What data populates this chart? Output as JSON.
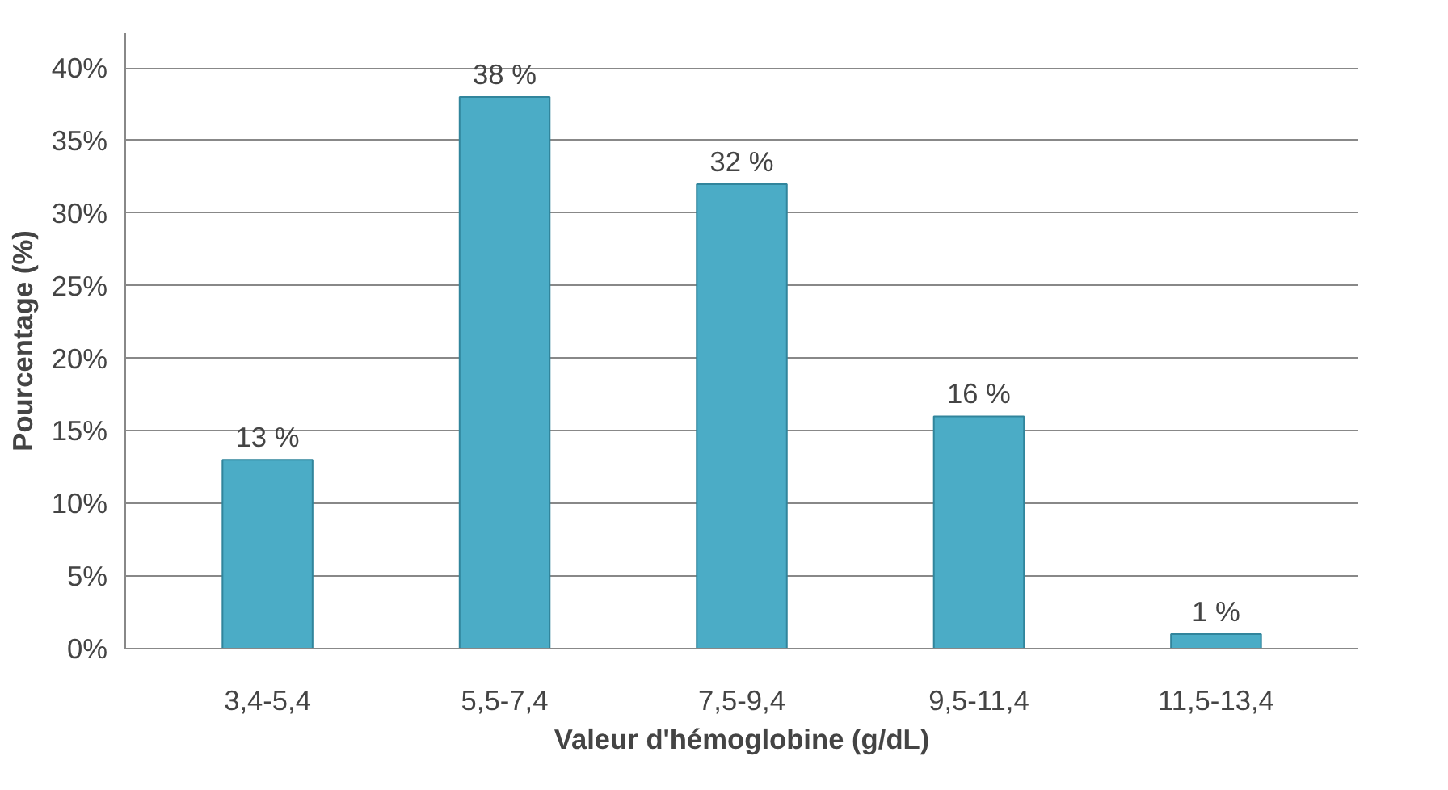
{
  "chart_data": {
    "type": "bar",
    "xlabel": "Valeur d'hémoglobine (g/dL)",
    "ylabel": "Pourcentage (%)",
    "categories": [
      "3,4-5,4",
      "5,5-7,4",
      "7,5-9,4",
      "9,5-11,4",
      "11,5-13,4"
    ],
    "values": [
      13,
      38,
      32,
      16,
      1
    ],
    "color": "#4bacc6",
    "value_labels": [
      "13 %",
      "38 %",
      "32 %",
      "16 %",
      "1 %"
    ],
    "ylim": [
      0,
      40
    ],
    "yticks": [
      {
        "value": 0,
        "label": "0%"
      },
      {
        "value": 5,
        "label": "5%"
      },
      {
        "value": 10,
        "label": "10%"
      },
      {
        "value": 15,
        "label": "15%"
      },
      {
        "value": 20,
        "label": "20%"
      },
      {
        "value": 25,
        "label": "25%"
      },
      {
        "value": 30,
        "label": "30%"
      },
      {
        "value": 35,
        "label": "35%"
      },
      {
        "value": 40,
        "label": "40%"
      }
    ],
    "grid": "y"
  }
}
